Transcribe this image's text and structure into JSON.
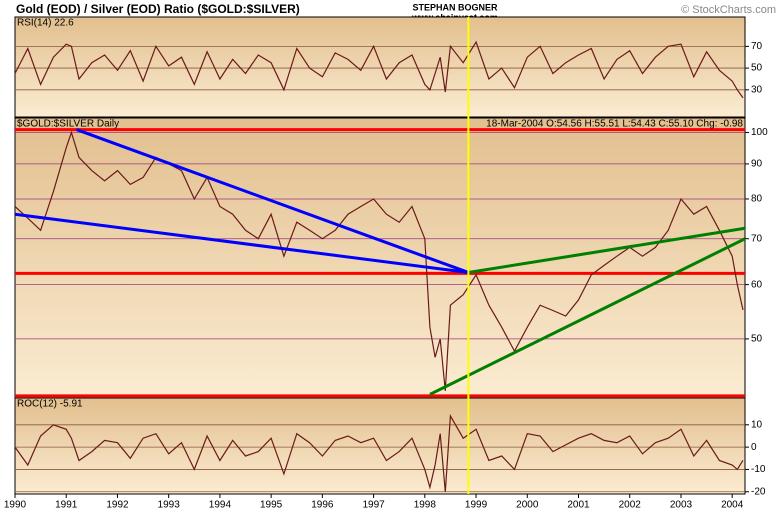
{
  "header": {
    "title": "Gold (EOD) / Silver (EOD) Ratio ($GOLD:$SILVER)",
    "author": "STEPHAN BOGNER",
    "site": "www.ebainvest.com",
    "credit": "© StockCharts.com"
  },
  "chart_data": [
    {
      "type": "line",
      "label": "RSI(14) 22.6",
      "color": "#6b1a1a",
      "x": [
        1990,
        1990.25,
        1990.5,
        1990.75,
        1991,
        1991.1,
        1991.25,
        1991.5,
        1991.75,
        1992,
        1992.25,
        1992.5,
        1992.75,
        1993,
        1993.25,
        1993.5,
        1993.75,
        1994,
        1994.25,
        1994.5,
        1994.75,
        1995,
        1995.25,
        1995.5,
        1995.75,
        1996,
        1996.25,
        1996.5,
        1996.75,
        1997,
        1997.25,
        1997.5,
        1997.75,
        1998,
        1998.1,
        1998.2,
        1998.3,
        1998.4,
        1998.5,
        1998.75,
        1999,
        1999.25,
        1999.5,
        1999.75,
        2000,
        2000.25,
        2000.5,
        2000.75,
        2001,
        2001.25,
        2001.5,
        2001.75,
        2002,
        2002.25,
        2002.5,
        2002.75,
        2003,
        2003.25,
        2003.5,
        2003.75,
        2004,
        2004.1,
        2004.21
      ],
      "values": [
        45,
        68,
        35,
        60,
        72,
        70,
        40,
        55,
        62,
        48,
        66,
        38,
        70,
        52,
        60,
        35,
        65,
        40,
        58,
        45,
        62,
        55,
        30,
        68,
        50,
        42,
        64,
        58,
        48,
        70,
        40,
        55,
        62,
        35,
        30,
        45,
        60,
        28,
        70,
        55,
        74,
        40,
        50,
        32,
        60,
        70,
        45,
        55,
        62,
        68,
        40,
        58,
        66,
        45,
        60,
        70,
        72,
        42,
        65,
        48,
        38,
        30,
        22.6
      ],
      "xlim": [
        1990,
        2004.25
      ],
      "ylim": [
        5,
        97
      ],
      "yticks": [
        30,
        50,
        70
      ],
      "grid": true
    },
    {
      "type": "line",
      "label": "$GOLD:$SILVER Daily",
      "quote": "18-Mar-2004 O:54.56 H:55.51 L:54.43 C:55.10 Chg: -0.98",
      "color": "#6b1a1a",
      "log_scale": true,
      "x": [
        1990,
        1990.25,
        1990.5,
        1990.75,
        1991,
        1991.1,
        1991.25,
        1991.5,
        1991.75,
        1992,
        1992.25,
        1992.5,
        1992.75,
        1993,
        1993.25,
        1993.5,
        1993.75,
        1994,
        1994.25,
        1994.5,
        1994.75,
        1995,
        1995.25,
        1995.5,
        1995.75,
        1996,
        1996.25,
        1996.5,
        1996.75,
        1997,
        1997.25,
        1997.5,
        1997.75,
        1998,
        1998.1,
        1998.2,
        1998.3,
        1998.4,
        1998.5,
        1998.75,
        1999,
        1999.25,
        1999.5,
        1999.75,
        2000,
        2000.25,
        2000.5,
        2000.75,
        2001,
        2001.25,
        2001.5,
        2001.75,
        2002,
        2002.25,
        2002.5,
        2002.75,
        2003,
        2003.25,
        2003.5,
        2003.75,
        2004,
        2004.1,
        2004.21
      ],
      "values": [
        78,
        75,
        72,
        82,
        95,
        100,
        92,
        88,
        85,
        88,
        84,
        86,
        92,
        90,
        88,
        80,
        86,
        78,
        76,
        72,
        70,
        76,
        66,
        74,
        72,
        70,
        72,
        76,
        78,
        80,
        76,
        74,
        78,
        70,
        52,
        47,
        50,
        42,
        56,
        58,
        62,
        56,
        52,
        48,
        52,
        56,
        55,
        54,
        57,
        62,
        64,
        66,
        68,
        66,
        68,
        72,
        80,
        76,
        78,
        72,
        66,
        60,
        55.1
      ],
      "xlim": [
        1990,
        2004.25
      ],
      "ylim": [
        41,
        105
      ],
      "yticks": [
        50,
        60,
        70,
        80,
        90,
        100
      ],
      "grid": true,
      "reference_lines": {
        "color": "#ff0000",
        "values": [
          101,
          62.3,
          41.3
        ]
      },
      "vline": {
        "color": "#ffff00",
        "x": 1998.85
      },
      "trendlines": [
        {
          "color": "#0000ff",
          "x": [
            1991.2,
            1998.85
          ],
          "y": [
            101,
            62.5
          ]
        },
        {
          "color": "#0000ff",
          "x": [
            1990,
            1998.85
          ],
          "y": [
            76,
            62.5
          ]
        },
        {
          "color": "#008000",
          "x": [
            1998.85,
            2004.25
          ],
          "y": [
            62.5,
            72.5
          ]
        },
        {
          "color": "#008000",
          "x": [
            1998.1,
            2004.25
          ],
          "y": [
            41.5,
            70
          ]
        }
      ]
    },
    {
      "type": "line",
      "label": "ROC(12) -5.91",
      "color": "#6b1a1a",
      "x": [
        1990,
        1990.25,
        1990.5,
        1990.75,
        1991,
        1991.1,
        1991.25,
        1991.5,
        1991.75,
        1992,
        1992.25,
        1992.5,
        1992.75,
        1993,
        1993.25,
        1993.5,
        1993.75,
        1994,
        1994.25,
        1994.5,
        1994.75,
        1995,
        1995.25,
        1995.5,
        1995.75,
        1996,
        1996.25,
        1996.5,
        1996.75,
        1997,
        1997.25,
        1997.5,
        1997.75,
        1998,
        1998.1,
        1998.2,
        1998.3,
        1998.4,
        1998.5,
        1998.75,
        1999,
        1999.25,
        1999.5,
        1999.75,
        2000,
        2000.25,
        2000.5,
        2000.75,
        2001,
        2001.25,
        2001.5,
        2001.75,
        2002,
        2002.25,
        2002.5,
        2002.75,
        2003,
        2003.25,
        2003.5,
        2003.75,
        2004,
        2004.1,
        2004.21
      ],
      "values": [
        0,
        -8,
        5,
        10,
        8,
        4,
        -6,
        -2,
        3,
        2,
        -5,
        4,
        6,
        -3,
        2,
        -10,
        5,
        -6,
        3,
        -4,
        -2,
        4,
        -12,
        6,
        2,
        -4,
        3,
        5,
        2,
        4,
        -6,
        -2,
        4,
        -10,
        -18,
        -8,
        6,
        -20,
        14,
        4,
        8,
        -6,
        -4,
        -10,
        6,
        5,
        -2,
        1,
        4,
        6,
        3,
        2,
        5,
        -3,
        2,
        4,
        8,
        -4,
        3,
        -6,
        -8,
        -10,
        -5.91
      ],
      "xlim": [
        1990,
        2004.25
      ],
      "ylim": [
        -21,
        22
      ],
      "yticks": [
        -20,
        -10,
        0,
        10
      ],
      "grid": true,
      "xticks": [
        1990,
        1991,
        1992,
        1993,
        1994,
        1995,
        1996,
        1997,
        1998,
        1999,
        2000,
        2001,
        2002,
        2003,
        2004
      ]
    }
  ]
}
